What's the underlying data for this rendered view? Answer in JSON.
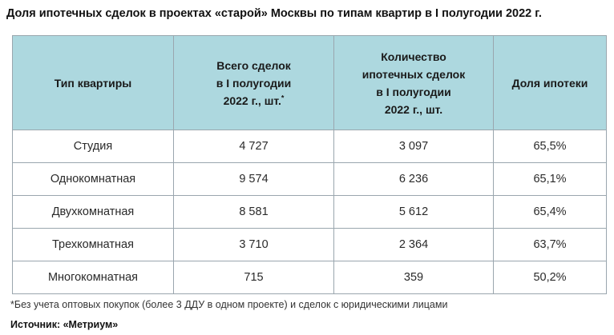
{
  "title": "Доля ипотечных сделок в проектах «старой» Москвы по типам квартир в I полугодии 2022 г.",
  "table": {
    "headers": {
      "type": "Тип квартиры",
      "total_line1": "Всего сделок",
      "total_line2": "в I полугодии",
      "total_line3": "2022 г., шт.",
      "total_mark": "*",
      "mortgage_line1": "Количество",
      "mortgage_line2": "ипотечных сделок",
      "mortgage_line3": "в I полугодии",
      "mortgage_line4": "2022 г., шт.",
      "share": "Доля ипотеки"
    },
    "rows": [
      {
        "type": "Студия",
        "total": "4 727",
        "mortgage": "3 097",
        "share": "65,5%"
      },
      {
        "type": "Однокомнатная",
        "total": "9 574",
        "mortgage": "6 236",
        "share": "65,1%"
      },
      {
        "type": "Двухкомнатная",
        "total": "8 581",
        "mortgage": "5 612",
        "share": "65,4%"
      },
      {
        "type": "Трехкомнатная",
        "total": "3 710",
        "mortgage": "2 364",
        "share": "63,7%"
      },
      {
        "type": "Многокомнатная",
        "total": "715",
        "mortgage": "359",
        "share": "50,2%"
      }
    ]
  },
  "footnote": "*Без учета оптовых покупок (более 3 ДДУ в одном проекте) и сделок с юридическими лицами",
  "source": "Источник: «Метриум»",
  "colors": {
    "header_bg": "#add8df",
    "border": "#9aa6ae"
  }
}
